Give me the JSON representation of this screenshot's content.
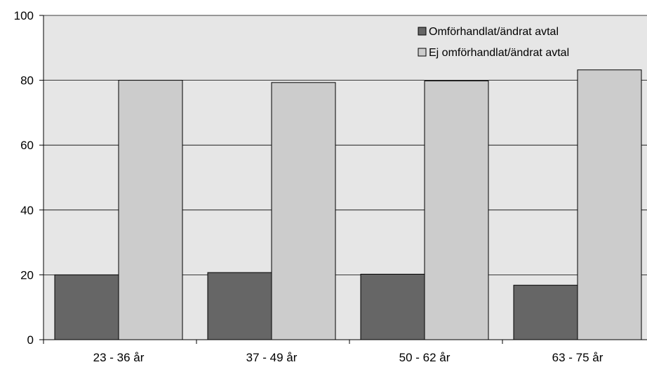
{
  "chart_data": {
    "type": "bar",
    "categories": [
      "23 - 36 år",
      "37 - 49 år",
      "50 - 62 år",
      "63 - 75 år"
    ],
    "series": [
      {
        "name": "Omförhandlat/ändrat avtal",
        "values": [
          20,
          20.7,
          20.2,
          16.8
        ],
        "color": "#666666"
      },
      {
        "name": "Ej omförhandlat/ändrat avtal",
        "values": [
          80,
          79.3,
          79.8,
          83.2
        ],
        "color": "#cccccc"
      }
    ],
    "ylim": [
      0,
      100
    ],
    "yticks": [
      "0",
      "20",
      "40",
      "60",
      "80",
      "100"
    ],
    "grid": true,
    "legend": "top-right",
    "plot_background": "#e6e6e6"
  }
}
